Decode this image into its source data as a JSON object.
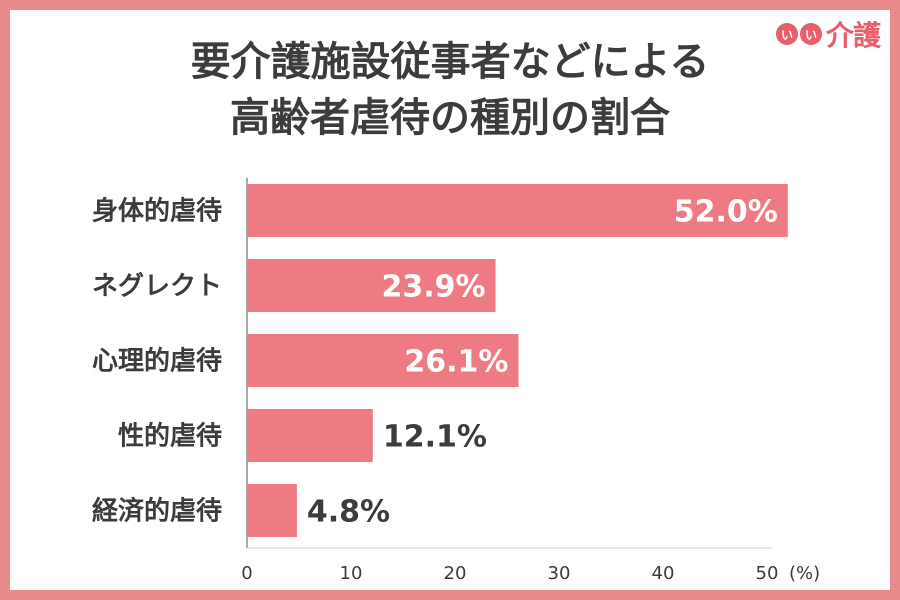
{
  "title_lines": [
    "要介護施設従事者などによる",
    "高齢者虐待の種別の割合"
  ],
  "logo": {
    "dot1": "い",
    "dot2": "い",
    "text": "介護"
  },
  "colors": {
    "bar": "#ee7b84",
    "border": "#e98b8b",
    "text": "#3c3c3c",
    "logo": "#e95e6b"
  },
  "chart_data": {
    "type": "bar",
    "orientation": "horizontal",
    "title": "要介護施設従事者などによる高齢者虐待の種別の割合",
    "categories": [
      "身体的虐待",
      "ネグレクト",
      "心理的虐待",
      "性的虐待",
      "経済的虐待"
    ],
    "values": [
      52.0,
      23.9,
      26.1,
      12.1,
      4.8
    ],
    "value_labels": [
      "52.0%",
      "23.9%",
      "26.1%",
      "12.1%",
      "4.8%"
    ],
    "xticks": [
      "0",
      "10",
      "20",
      "30",
      "40",
      "50"
    ],
    "unit": "(%)",
    "xlim": [
      0,
      55
    ],
    "grid": false
  }
}
